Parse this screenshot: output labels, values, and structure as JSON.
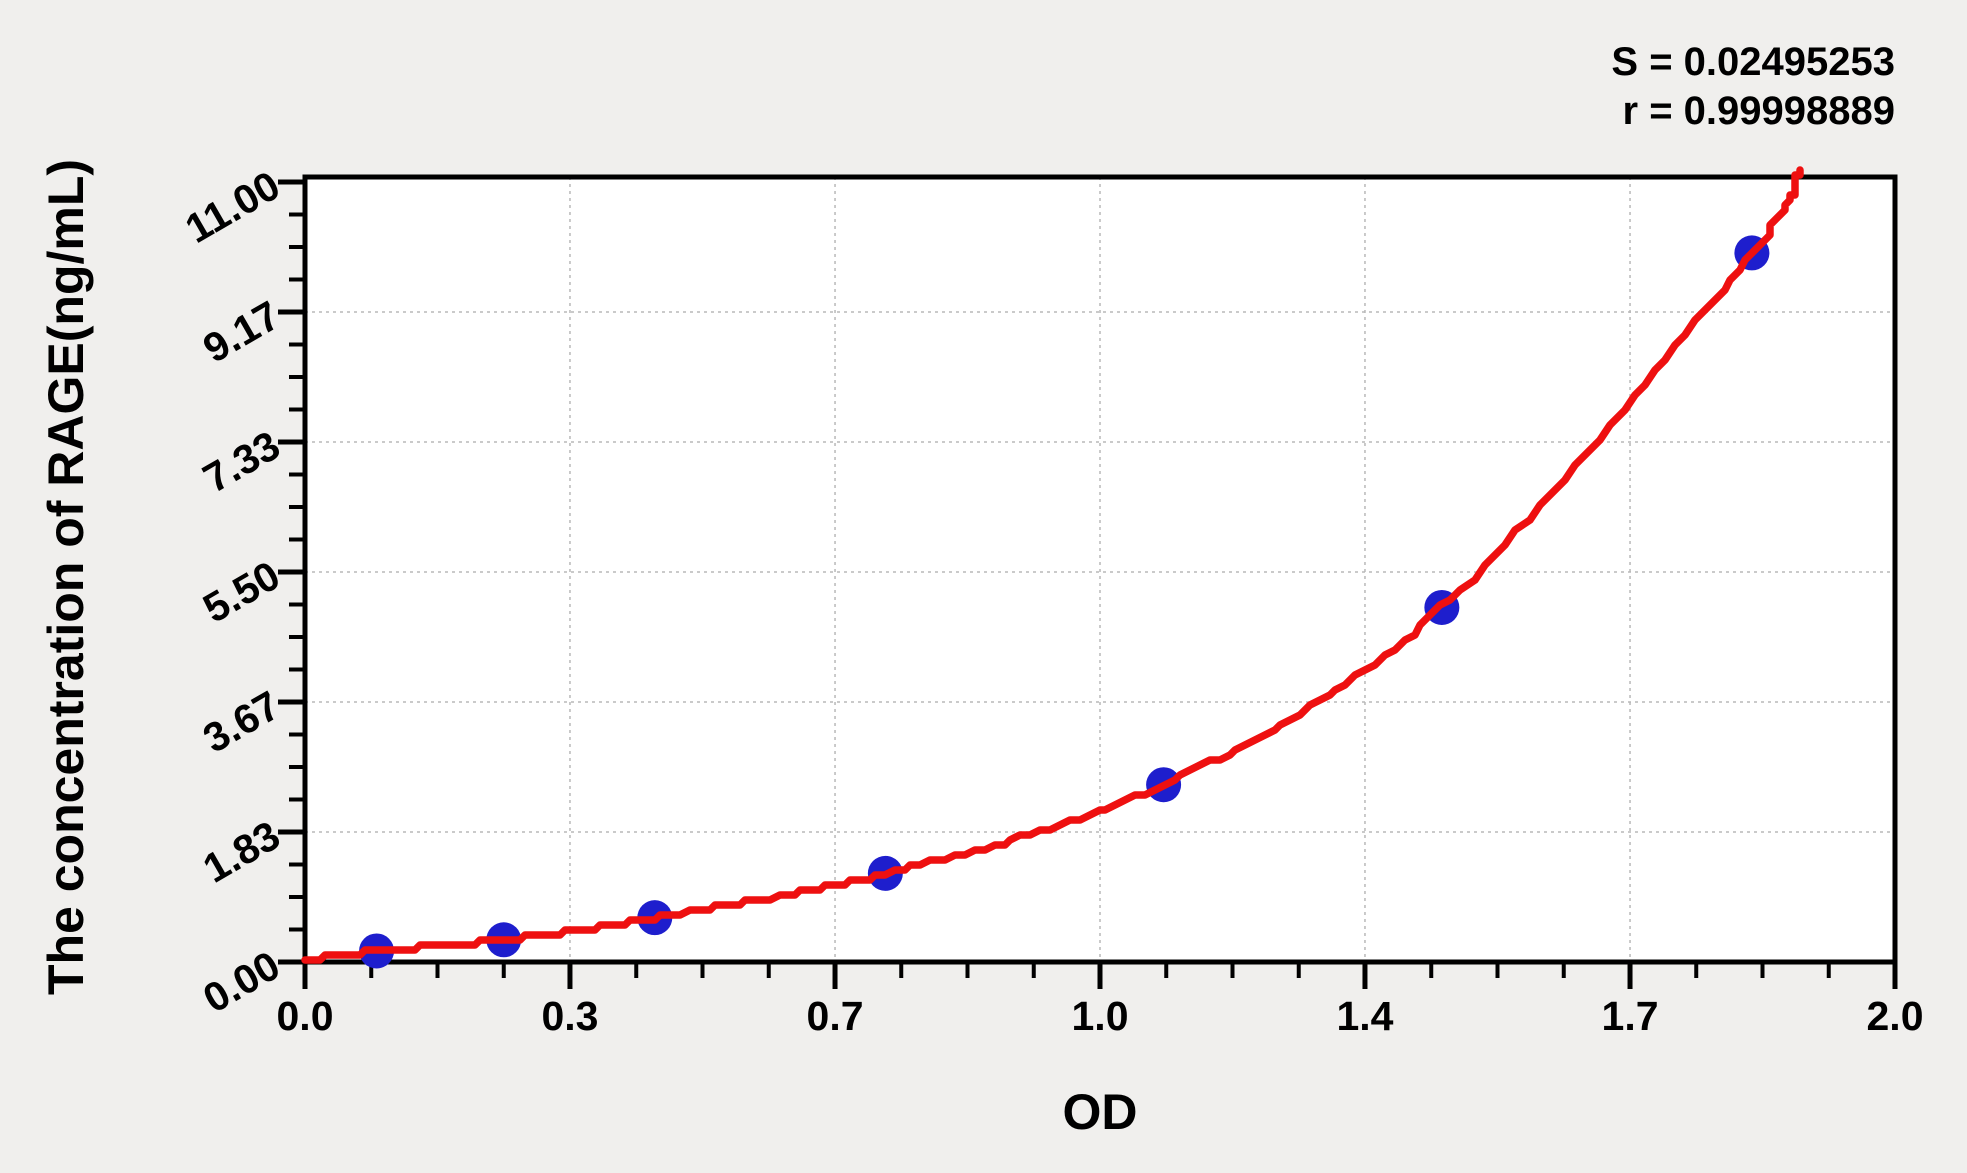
{
  "chart_data": {
    "type": "scatter",
    "title": "",
    "xlabel": "OD",
    "ylabel": "The concentration of RAGE(ng/mL)",
    "annotations": {
      "S": "S = 0.02495253",
      "r": "r = 0.99998889"
    },
    "xlim": [
      0,
      2
    ],
    "ylim": [
      0,
      11
    ],
    "x_tick_values": [
      0,
      0.3333,
      0.6667,
      1,
      1.3333,
      1.6667,
      2
    ],
    "x_tick_labels": [
      "0.0",
      "0.3",
      "0.7",
      "1.0",
      "1.4",
      "1.7",
      "2.0"
    ],
    "x_minor_step": 0.083333,
    "y_tick_values": [
      0,
      1.8333,
      3.6667,
      5.5,
      7.3333,
      9.1667,
      11
    ],
    "y_tick_labels": [
      "0.00",
      "1.83",
      "3.67",
      "5.50",
      "7.33",
      "9.17",
      "11.00"
    ],
    "y_minor_step": 0.458333,
    "grid": "dashed gray lines at interior major ticks",
    "legend": "none",
    "colors": {
      "point": "#1e1ecd",
      "curve": "#ee1010",
      "frame": "#000000",
      "gridline": "#b8b8b8",
      "plot_background": "#ffffff",
      "page_background": "#f0efed"
    },
    "series": [
      {
        "name": "standard-points",
        "type": "scatter",
        "color": "#1e1ecd",
        "points_od_conc": [
          [
            0.09,
            0.156
          ],
          [
            0.25,
            0.313
          ],
          [
            0.44,
            0.625
          ],
          [
            0.73,
            1.25
          ],
          [
            1.08,
            2.5
          ],
          [
            1.43,
            5.0
          ],
          [
            1.82,
            10.0
          ]
        ]
      },
      {
        "name": "fitted-curve",
        "type": "line",
        "color": "#ee1010",
        "points_od_conc": [
          [
            0,
            0.03
          ],
          [
            0.09,
            0.156
          ],
          [
            0.25,
            0.313
          ],
          [
            0.44,
            0.625
          ],
          [
            0.73,
            1.25
          ],
          [
            1.08,
            2.5
          ],
          [
            1.43,
            5.0
          ],
          [
            1.82,
            10.0
          ],
          [
            1.88,
            11.2
          ]
        ]
      }
    ]
  }
}
